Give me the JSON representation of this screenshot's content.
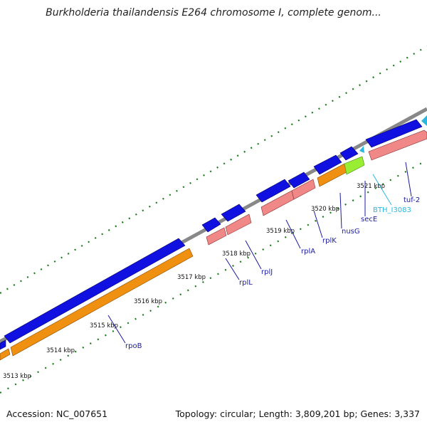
{
  "title": "Burkholderia thailandensis E264 chromosome I, complete genom...",
  "footer": {
    "accession": "Accession: NC_007651",
    "topology": "Topology: circular; Length: 3,809,201 bp; Genes: 3,337"
  },
  "kbp_ticks": [
    "3513 kbp",
    "3514 kbp",
    "3515 kbp",
    "3516 kbp",
    "3517 kbp",
    "3518 kbp",
    "3519 kbp",
    "3520 kbp",
    "3521 kbp"
  ],
  "genes": [
    "rpoB",
    "rplL",
    "rplJ",
    "rplA",
    "rplK",
    "nusG",
    "secE",
    "BTH_I3083",
    "tuf-2"
  ],
  "colors": {
    "backbone": "#888888",
    "cds_blue": "#1010e0",
    "gene_orange": "#f09010",
    "rna_pink": "#f08888",
    "green_feature": "#99ee33",
    "tick_green": "#1a7a1a",
    "label_blue": "#1a1aa0",
    "label_cyan": "#2bb8e0"
  }
}
